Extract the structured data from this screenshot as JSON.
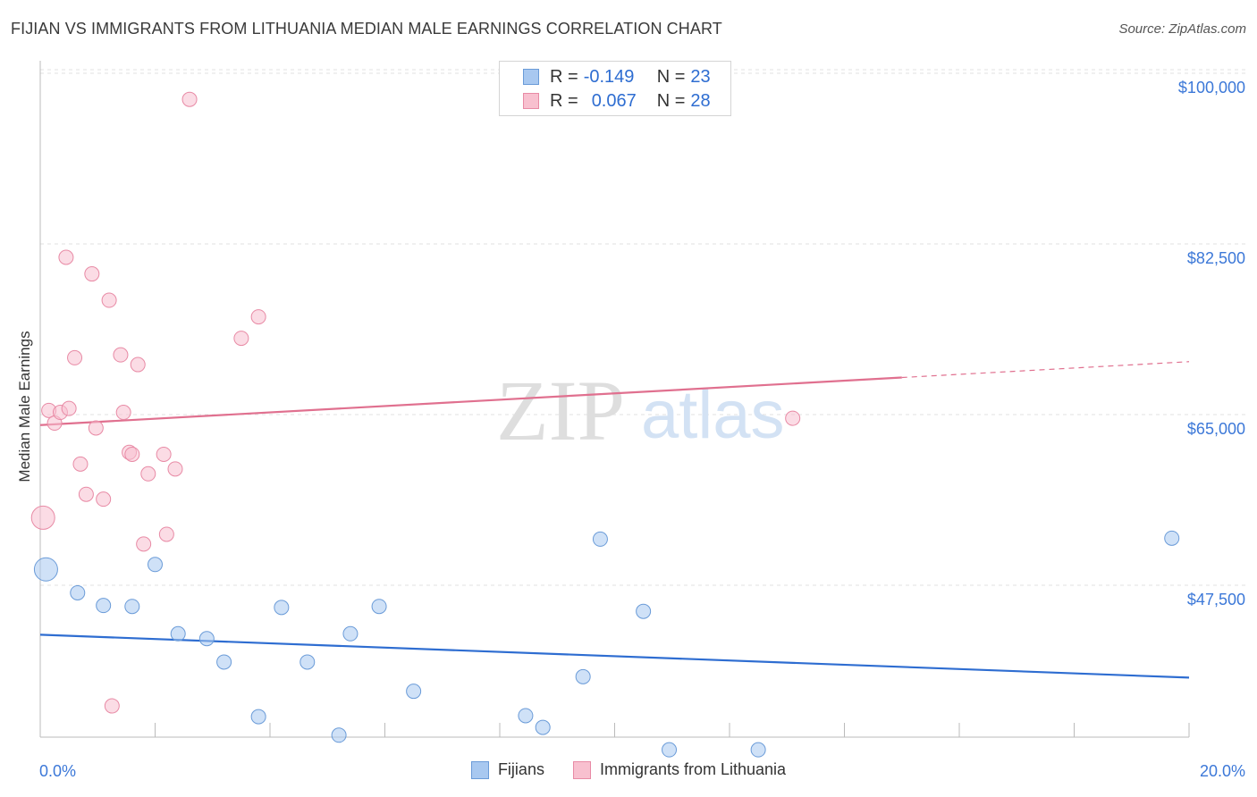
{
  "title": "FIJIAN VS IMMIGRANTS FROM LITHUANIA MEDIAN MALE EARNINGS CORRELATION CHART",
  "source": "Source: ZipAtlas.com",
  "watermark": {
    "zip": "ZIP",
    "atlas": "atlas"
  },
  "legend": {
    "rows": [
      {
        "r_label": "R =",
        "r_value": "-0.149",
        "n_label": "N =",
        "n_value": "23",
        "color": "#a8c8f0",
        "border": "#6a9bd8"
      },
      {
        "r_label": "R =",
        "r_value": "0.067",
        "n_label": "N =",
        "n_value": "28",
        "color": "#f8c0cf",
        "border": "#e88aa5"
      }
    ]
  },
  "bottom_legend": [
    {
      "label": "Fijians",
      "color": "#a8c8f0",
      "border": "#6a9bd8"
    },
    {
      "label": "Immigrants from Lithuania",
      "color": "#f8c0cf",
      "border": "#e88aa5"
    }
  ],
  "chart_data": {
    "type": "scatter",
    "title": "FIJIAN VS IMMIGRANTS FROM LITHUANIA MEDIAN MALE EARNINGS CORRELATION CHART",
    "xlabel": "",
    "ylabel": "Median Male Earnings",
    "xlim": [
      0,
      20
    ],
    "ylim": [
      32500,
      102500
    ],
    "x_tick_labels": [
      {
        "value": 0,
        "label": "0.0%"
      },
      {
        "value": 20,
        "label": "20.0%"
      }
    ],
    "y_tick_labels": [
      {
        "value": 100000,
        "label": "$100,000"
      },
      {
        "value": 82500,
        "label": "$82,500"
      },
      {
        "value": 65000,
        "label": "$65,000"
      },
      {
        "value": 47500,
        "label": "$47,500"
      }
    ],
    "series": [
      {
        "name": "Fijians",
        "color": "#a8c8f0",
        "stroke": "#6a9bd8",
        "line_color": "#2e6dd1",
        "trend": {
          "x": [
            0,
            20
          ],
          "y": [
            43800,
            39400
          ],
          "dashed_from": null
        },
        "points": [
          {
            "x": 0.1,
            "y": 50500,
            "big": true
          },
          {
            "x": 0.65,
            "y": 48100
          },
          {
            "x": 1.1,
            "y": 46800
          },
          {
            "x": 1.6,
            "y": 46700
          },
          {
            "x": 2.0,
            "y": 51000
          },
          {
            "x": 2.4,
            "y": 43900
          },
          {
            "x": 2.9,
            "y": 43400
          },
          {
            "x": 3.2,
            "y": 41000
          },
          {
            "x": 3.8,
            "y": 35400
          },
          {
            "x": 4.2,
            "y": 46600
          },
          {
            "x": 4.65,
            "y": 41000
          },
          {
            "x": 5.2,
            "y": 33500
          },
          {
            "x": 5.4,
            "y": 43900
          },
          {
            "x": 5.9,
            "y": 46700
          },
          {
            "x": 6.5,
            "y": 38000
          },
          {
            "x": 8.45,
            "y": 35500
          },
          {
            "x": 8.75,
            "y": 34300
          },
          {
            "x": 9.45,
            "y": 39500
          },
          {
            "x": 9.75,
            "y": 53600
          },
          {
            "x": 10.5,
            "y": 46200
          },
          {
            "x": 10.95,
            "y": 32000
          },
          {
            "x": 12.5,
            "y": 32000
          },
          {
            "x": 19.7,
            "y": 53700
          }
        ]
      },
      {
        "name": "Immigrants from Lithuania",
        "color": "#f8c0cf",
        "stroke": "#e88aa5",
        "line_color": "#e0708f",
        "trend": {
          "x": [
            0,
            20
          ],
          "y": [
            65300,
            71800
          ],
          "dashed_from": 15
        },
        "points": [
          {
            "x": 0.05,
            "y": 55800,
            "big": true
          },
          {
            "x": 0.15,
            "y": 66800
          },
          {
            "x": 0.25,
            "y": 65500
          },
          {
            "x": 0.35,
            "y": 66600
          },
          {
            "x": 0.45,
            "y": 82500
          },
          {
            "x": 0.5,
            "y": 67000
          },
          {
            "x": 0.6,
            "y": 72200
          },
          {
            "x": 0.7,
            "y": 61300
          },
          {
            "x": 0.8,
            "y": 58200
          },
          {
            "x": 0.9,
            "y": 80800
          },
          {
            "x": 0.97,
            "y": 65000
          },
          {
            "x": 1.1,
            "y": 57700
          },
          {
            "x": 1.2,
            "y": 78100
          },
          {
            "x": 1.25,
            "y": 36500
          },
          {
            "x": 1.4,
            "y": 72500
          },
          {
            "x": 1.45,
            "y": 66600
          },
          {
            "x": 1.55,
            "y": 62500
          },
          {
            "x": 1.6,
            "y": 62300
          },
          {
            "x": 1.7,
            "y": 71500
          },
          {
            "x": 1.8,
            "y": 53100
          },
          {
            "x": 1.88,
            "y": 60300
          },
          {
            "x": 2.15,
            "y": 62300
          },
          {
            "x": 2.2,
            "y": 54100
          },
          {
            "x": 2.35,
            "y": 60800
          },
          {
            "x": 2.6,
            "y": 98700
          },
          {
            "x": 3.5,
            "y": 74200
          },
          {
            "x": 3.8,
            "y": 76400
          },
          {
            "x": 13.1,
            "y": 66000
          }
        ]
      }
    ]
  }
}
